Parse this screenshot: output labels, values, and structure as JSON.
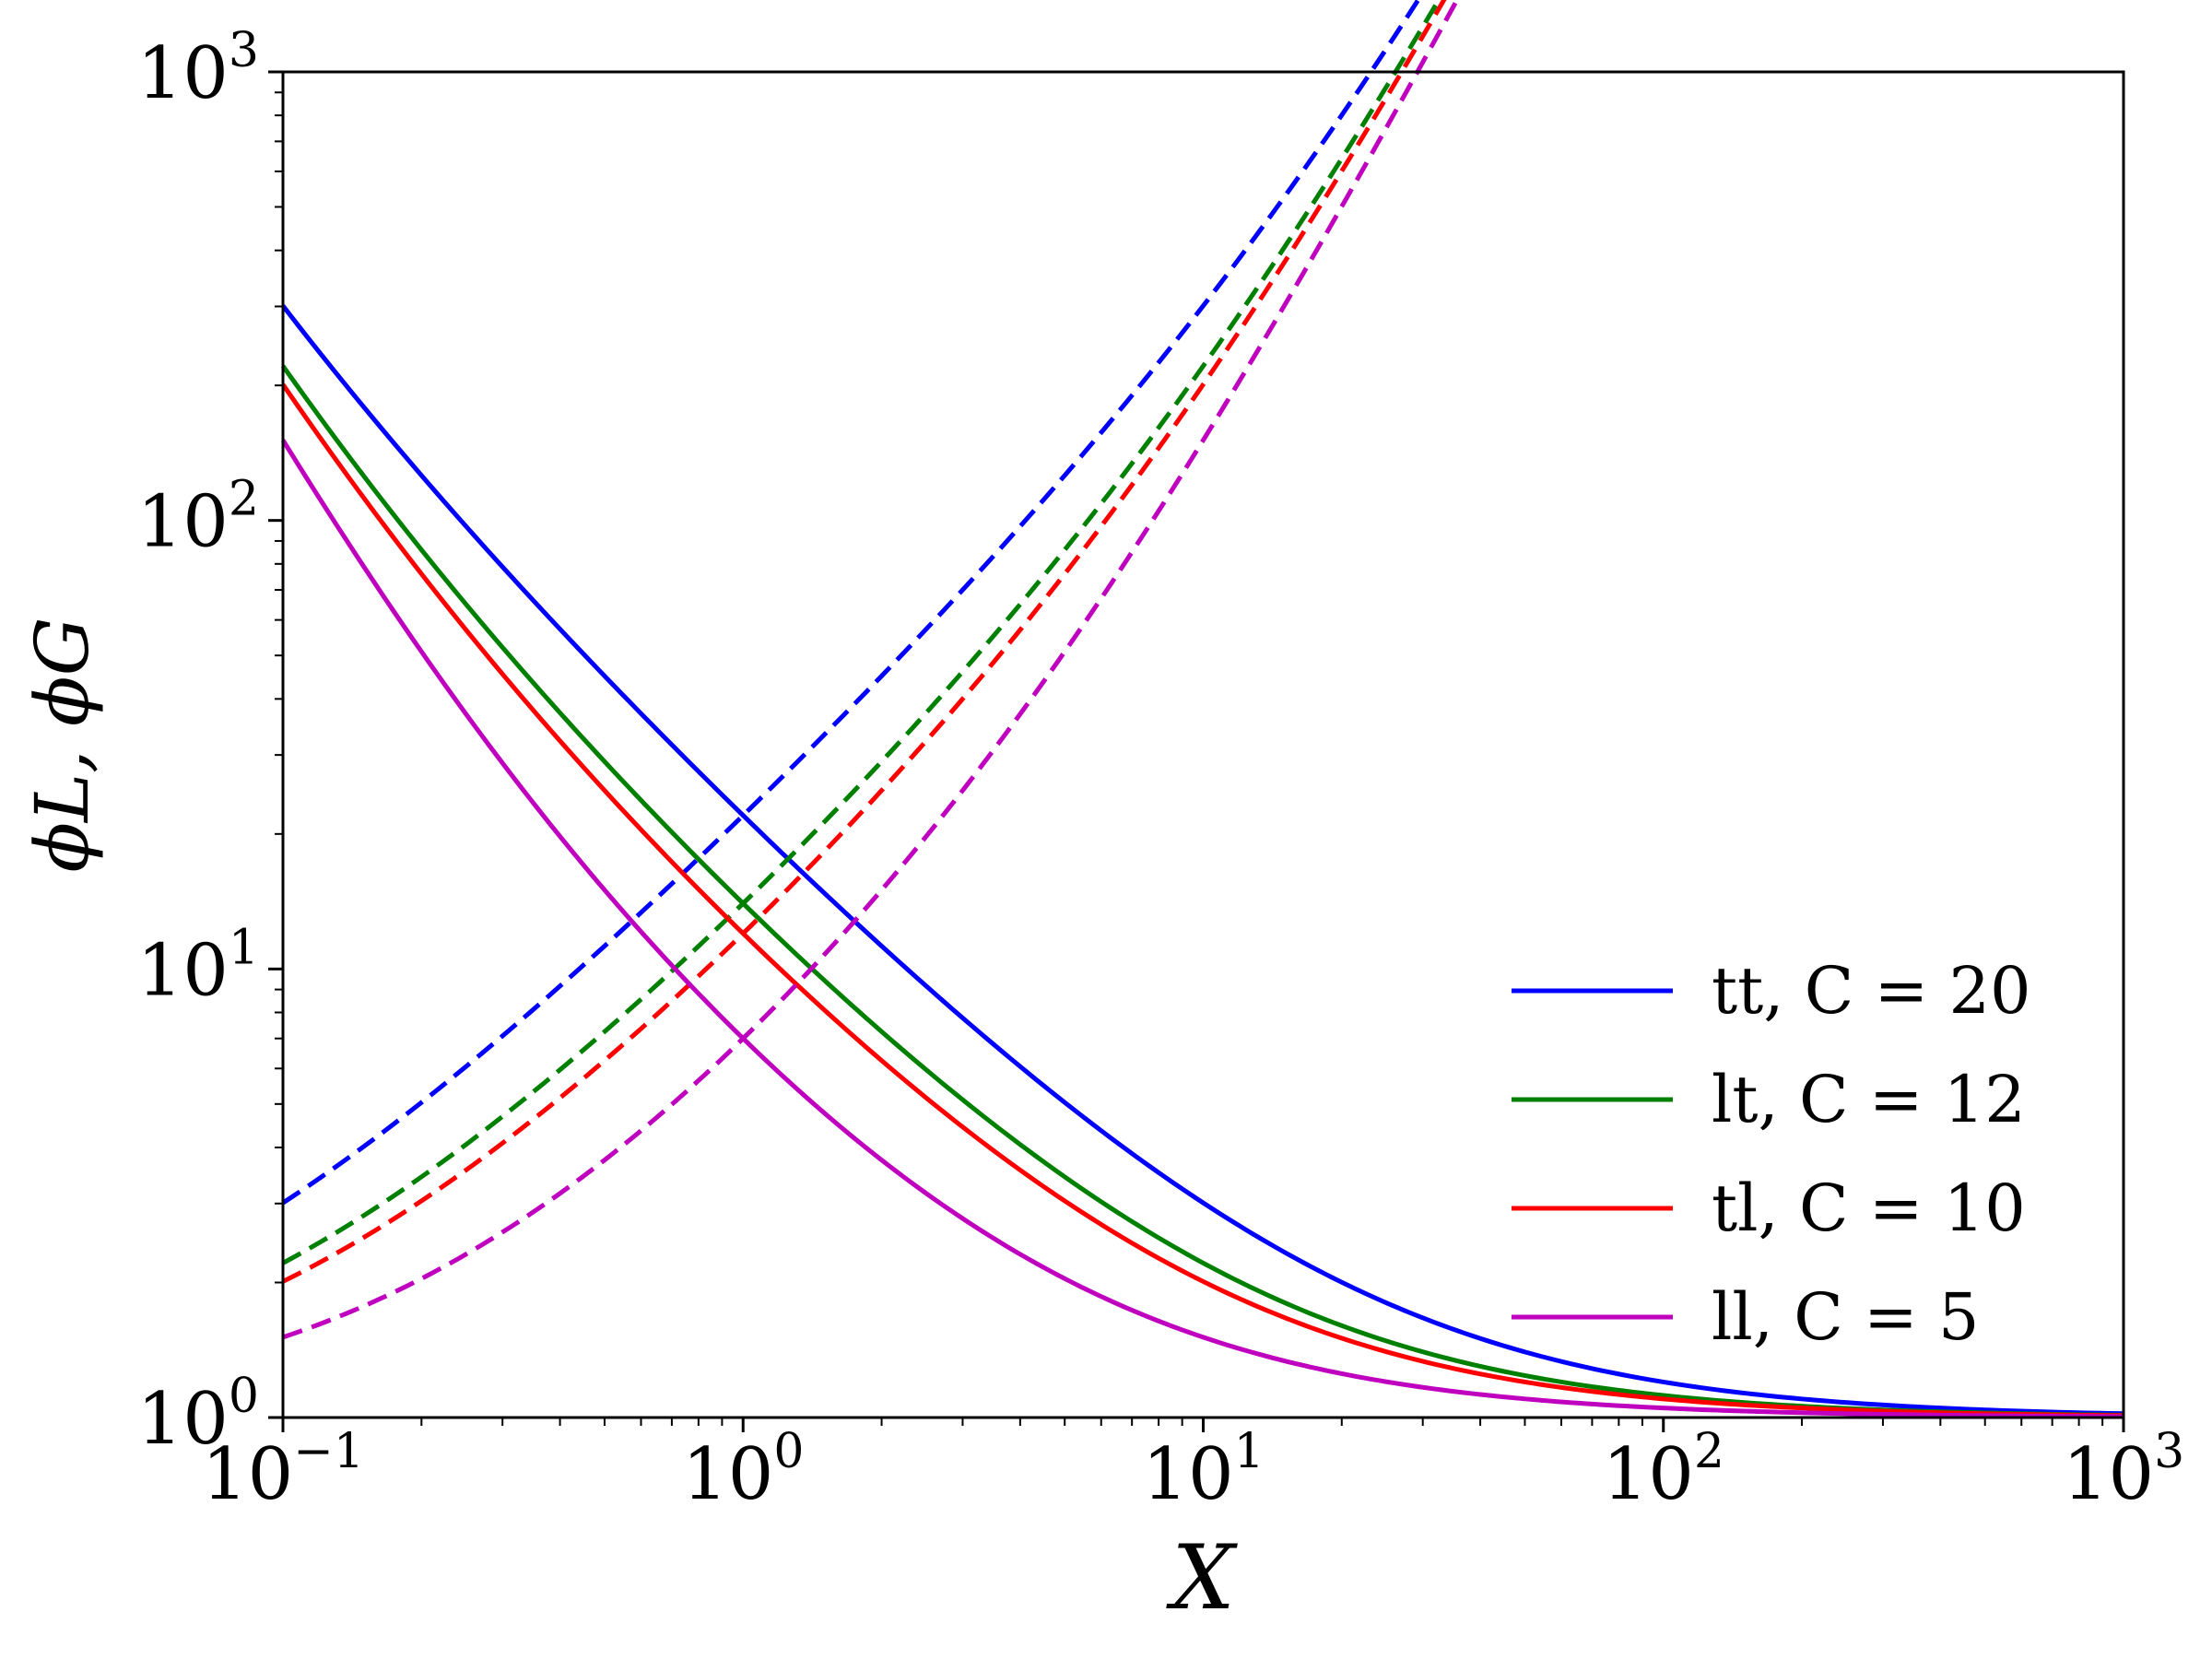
{
  "chart_data": {
    "type": "line",
    "xlabel": "X",
    "ylabel": "ϕL, ϕG",
    "xscale": "log",
    "yscale": "log",
    "xlim": [
      0.1,
      1000
    ],
    "ylim": [
      1,
      1000
    ],
    "x_ticks": [
      {
        "value": 0.1,
        "base": "10",
        "exp": "−1"
      },
      {
        "value": 1,
        "base": "10",
        "exp": "0"
      },
      {
        "value": 10,
        "base": "10",
        "exp": "1"
      },
      {
        "value": 100,
        "base": "10",
        "exp": "2"
      },
      {
        "value": 1000,
        "base": "10",
        "exp": "3"
      }
    ],
    "y_ticks": [
      {
        "value": 1,
        "base": "10",
        "exp": "0"
      },
      {
        "value": 10,
        "base": "10",
        "exp": "1"
      },
      {
        "value": 100,
        "base": "10",
        "exp": "2"
      },
      {
        "value": 1000,
        "base": "10",
        "exp": "3"
      }
    ],
    "legend_position": "lower-right",
    "series": [
      {
        "name": "tt, C = 20",
        "prefix": "tt, ",
        "C": 20,
        "color": "#0000ff"
      },
      {
        "name": "lt, C = 12",
        "prefix": "lt, ",
        "C": 12,
        "color": "#008000"
      },
      {
        "name": "tl, C = 10",
        "prefix": "tl, ",
        "C": 10,
        "color": "#ff0000"
      },
      {
        "name": "ll, C = 5",
        "prefix": "ll, ",
        "C": 5,
        "color": "#bf00bf"
      }
    ],
    "curves": {
      "phi_L": "solid line: 1 + C/X + 1/X^2",
      "phi_G": "dashed line: 1 + C*X + X^2"
    }
  }
}
